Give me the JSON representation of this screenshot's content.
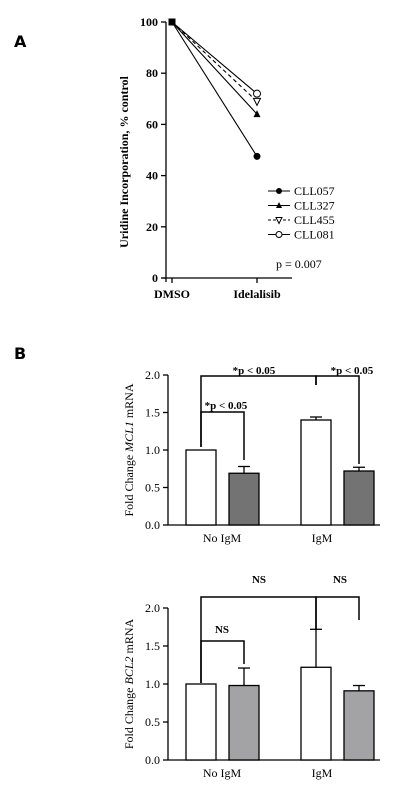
{
  "panels": {
    "a": {
      "letter": "A"
    },
    "b": {
      "letter": "B"
    }
  },
  "chart_data": [
    {
      "type": "line",
      "ylabel": "Uridine Incorporation, % control",
      "xlabel": "",
      "categories": [
        "DMSO",
        "Idelalisib"
      ],
      "ylim": [
        0,
        100
      ],
      "yticks": [
        0,
        20,
        40,
        60,
        80,
        100
      ],
      "grid": false,
      "legend_placement": "bottom-right",
      "series": [
        {
          "name": "CLL057",
          "marker": "filled-circle",
          "line": "solid",
          "values": [
            100,
            47.5
          ]
        },
        {
          "name": "CLL327",
          "marker": "filled-triangle",
          "line": "solid",
          "values": [
            100,
            64
          ]
        },
        {
          "name": "CLL455",
          "marker": "open-triangle-down",
          "line": "dashed",
          "values": [
            100,
            69
          ]
        },
        {
          "name": "CLL081",
          "marker": "open-circle",
          "line": "solid",
          "values": [
            100,
            72
          ]
        }
      ],
      "annotations": [
        "p = 0.007"
      ]
    },
    {
      "type": "bar",
      "ylabel_prefix": "Fold Change ",
      "ylabel_gene": "MCL1",
      "ylabel_suffix": " mRNA",
      "categories": [
        "No IgM",
        "IgM"
      ],
      "ylim": [
        0,
        2.0
      ],
      "yticks": [
        "0.0",
        "0.5",
        "1.0",
        "1.5",
        "2.0"
      ],
      "series": [
        {
          "color": "#ffffff",
          "values": [
            1.0,
            1.4
          ],
          "errors": [
            0.0,
            0.04
          ]
        },
        {
          "color": "#737373",
          "values": [
            0.69,
            0.72
          ],
          "errors": [
            0.09,
            0.05
          ]
        }
      ],
      "significance": [
        {
          "label": "*p < 0.05"
        },
        {
          "label": "*p < 0.05"
        },
        {
          "label": "*p < 0.05"
        }
      ]
    },
    {
      "type": "bar",
      "ylabel_prefix": "Fold Change ",
      "ylabel_gene": "BCL2",
      "ylabel_suffix": " mRNA",
      "categories": [
        "No IgM",
        "IgM"
      ],
      "ylim": [
        0,
        2.0
      ],
      "yticks": [
        "0.0",
        "0.5",
        "1.0",
        "1.5",
        "2.0"
      ],
      "series": [
        {
          "color": "#ffffff",
          "values": [
            1.0,
            1.22
          ],
          "errors": [
            0.0,
            0.5
          ]
        },
        {
          "color": "#a3a3a6",
          "values": [
            0.98,
            0.91
          ],
          "errors": [
            0.23,
            0.07
          ]
        }
      ],
      "significance": [
        {
          "label": "NS"
        },
        {
          "label": "NS"
        },
        {
          "label": "NS"
        }
      ]
    }
  ]
}
